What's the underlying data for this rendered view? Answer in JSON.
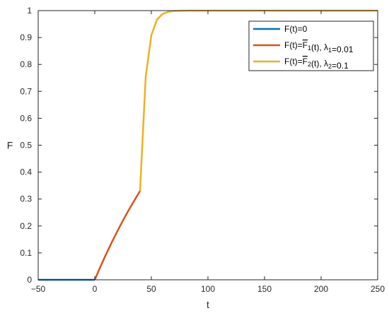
{
  "chart_data": {
    "type": "line",
    "xlabel": "t",
    "ylabel": "F",
    "xlim": [
      -50,
      250
    ],
    "ylim": [
      0,
      1
    ],
    "x_ticks": [
      -50,
      0,
      50,
      100,
      150,
      200,
      250
    ],
    "y_ticks": [
      0,
      0.1,
      0.2,
      0.3,
      0.4,
      0.5,
      0.6,
      0.7,
      0.8,
      0.9,
      1
    ],
    "x_tick_labels": [
      "−50",
      "0",
      "50",
      "100",
      "150",
      "200",
      "250"
    ],
    "y_tick_labels": [
      "0",
      "0.1",
      "0.2",
      "0.3",
      "0.4",
      "0.5",
      "0.6",
      "0.7",
      "0.8",
      "0.9",
      "1"
    ],
    "grid": false,
    "legend_position": "top-right",
    "series": [
      {
        "color": "#0072BD",
        "legend": {
          "prefix": "F(t)=0",
          "mid": "",
          "sub1": "",
          "suffix": "",
          "sub2": "",
          "tail": ""
        },
        "x": [
          -50,
          0
        ],
        "y": [
          0,
          0
        ]
      },
      {
        "color": "#D95319",
        "legend": {
          "prefix": "F(t)=",
          "mid": "F",
          "sub1": "1",
          "suffix": "(t), λ",
          "sub2": "1",
          "tail": "=0.01"
        },
        "x": [
          0,
          5,
          10,
          15,
          20,
          25,
          30,
          35,
          40
        ],
        "y": [
          0,
          0.049,
          0.095,
          0.139,
          0.181,
          0.221,
          0.259,
          0.295,
          0.33
        ]
      },
      {
        "color": "#EDB120",
        "legend": {
          "prefix": "F(t)=",
          "mid": "F",
          "sub1": "2",
          "suffix": "(t), λ",
          "sub2": "2",
          "tail": "=0.1"
        },
        "x": [
          40,
          45,
          50,
          55,
          60,
          65,
          70,
          75,
          80,
          85,
          90,
          95,
          100,
          110,
          120,
          130,
          150,
          200,
          250
        ],
        "y": [
          0.33,
          0.754,
          0.909,
          0.967,
          0.988,
          0.9955,
          0.9983,
          0.9994,
          0.9998,
          0.9999,
          1.0,
          1.0,
          1.0,
          1.0,
          1.0,
          1.0,
          1.0,
          1.0,
          1.0
        ]
      }
    ]
  }
}
